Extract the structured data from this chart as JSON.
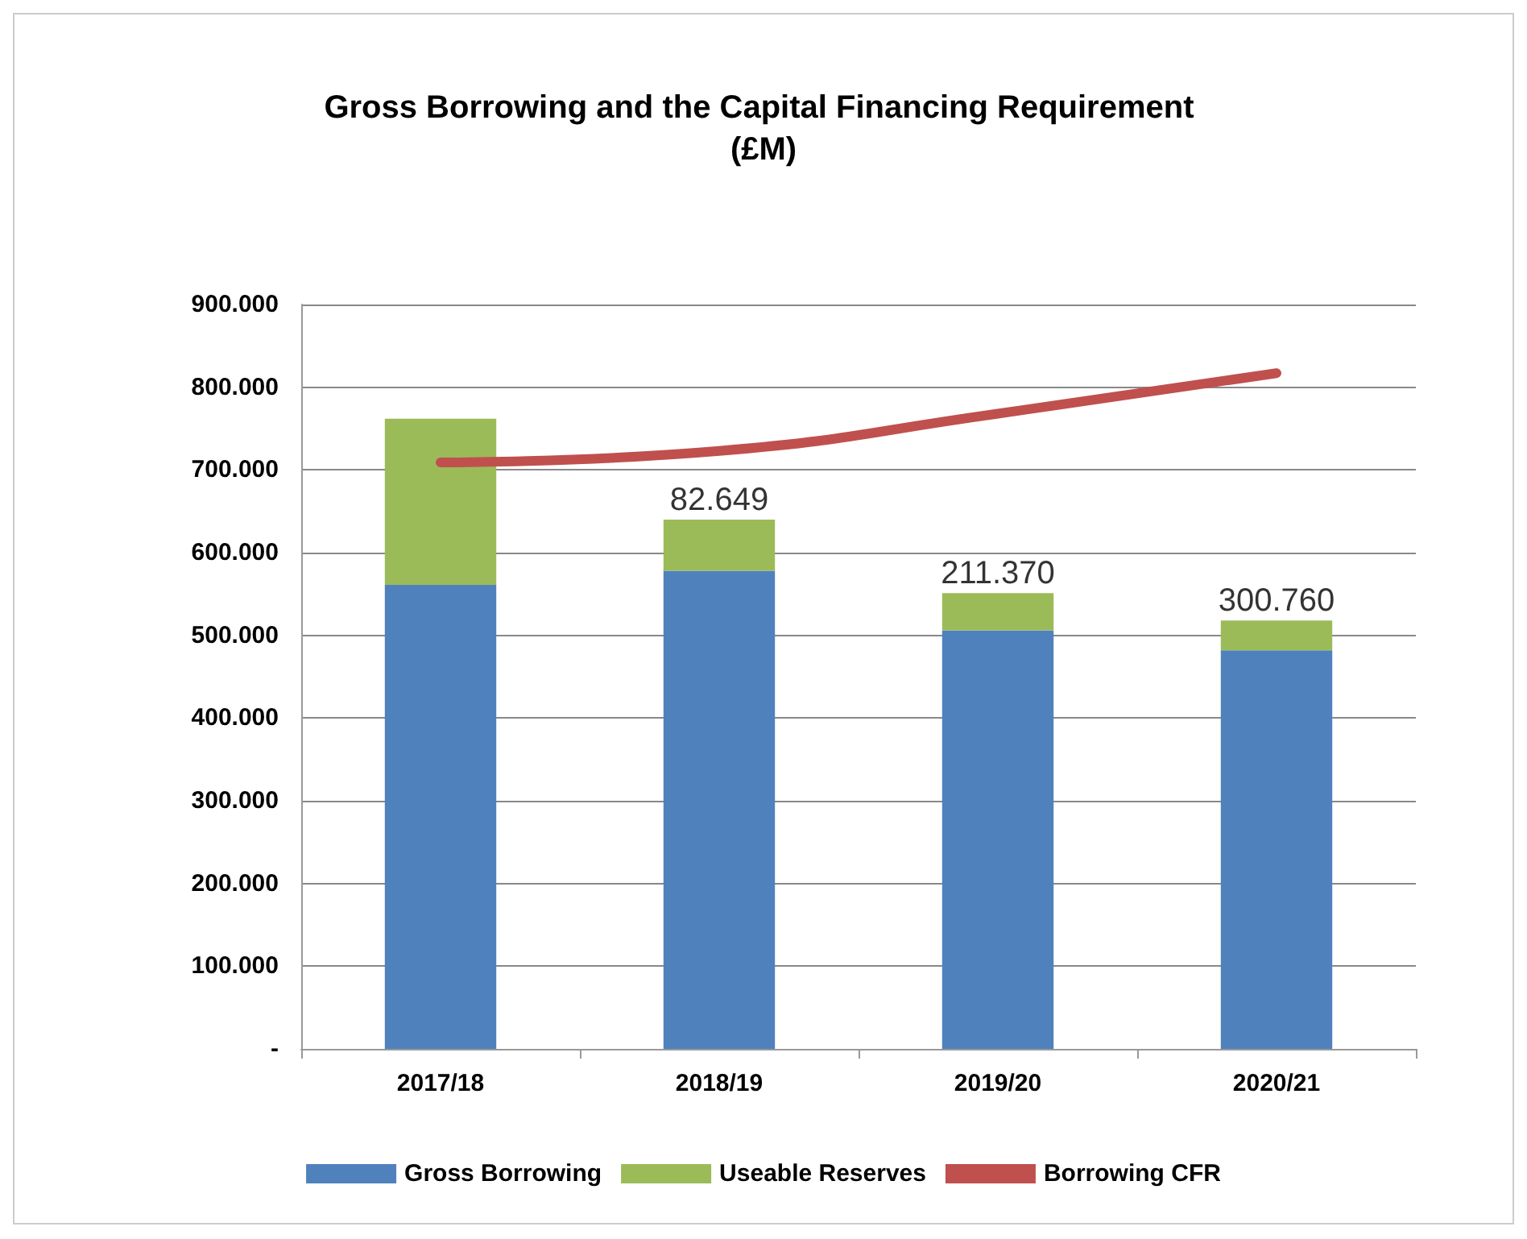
{
  "chart_data": {
    "type": "bar",
    "title": "Gross Borrowing and the Capital Financing Requirement (£M)",
    "categories": [
      "2017/18",
      "2018/19",
      "2019/20",
      "2020/21"
    ],
    "stacked": true,
    "series": [
      {
        "name": "Gross Borrowing",
        "color": "#4f81bd",
        "values": [
          561,
          578,
          506,
          482
        ]
      },
      {
        "name": "Useable Reserves",
        "color": "#9bbb59",
        "values": [
          201,
          62,
          45,
          36
        ]
      },
      {
        "name": "Borrowing CFR",
        "type": "line",
        "color": "#c0504d",
        "values": [
          709,
          723,
          768,
          817
        ],
        "marker": "none"
      }
    ],
    "ylim": [
      0,
      900
    ],
    "yticks": [
      {
        "value": 0,
        "label": "-"
      },
      {
        "value": 100,
        "label": "100.000"
      },
      {
        "value": 200,
        "label": "200.000"
      },
      {
        "value": 300,
        "label": "300.000"
      },
      {
        "value": 400,
        "label": "400.000"
      },
      {
        "value": 500,
        "label": "500.000"
      },
      {
        "value": 600,
        "label": "600.000"
      },
      {
        "value": 700,
        "label": "700.000"
      },
      {
        "value": 800,
        "label": "800.000"
      },
      {
        "value": 900,
        "label": "900.000"
      }
    ],
    "grid": "y",
    "legend": "bottom",
    "annotations": [
      {
        "text": "82.649",
        "x": "2018/19",
        "y": 640
      },
      {
        "text": "211.370",
        "x": "2019/20",
        "y": 551
      },
      {
        "text": "300.760",
        "x": "2020/21",
        "y": 518
      }
    ]
  }
}
